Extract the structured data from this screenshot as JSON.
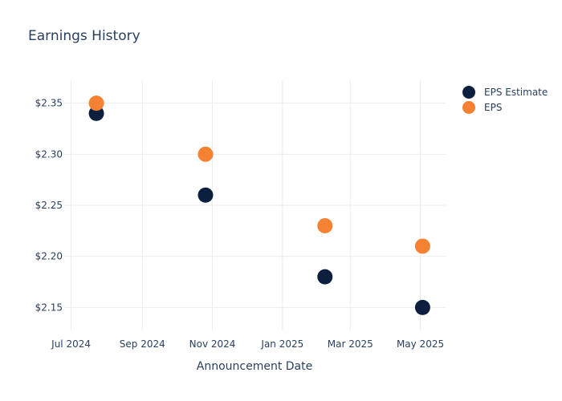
{
  "chart_data": {
    "type": "scatter",
    "title": "Earnings History",
    "xlabel": "Announcement Date",
    "ylabel": "",
    "x_ticks": [
      {
        "date": "2024-07-01",
        "label": "Jul 2024"
      },
      {
        "date": "2024-09-01",
        "label": "Sep 2024"
      },
      {
        "date": "2024-11-01",
        "label": "Nov 2024"
      },
      {
        "date": "2025-01-01",
        "label": "Jan 2025"
      },
      {
        "date": "2025-03-01",
        "label": "Mar 2025"
      },
      {
        "date": "2025-05-01",
        "label": "May 2025"
      }
    ],
    "y_ticks": [
      {
        "value": 2.15,
        "label": "$2.15"
      },
      {
        "value": 2.2,
        "label": "$2.20"
      },
      {
        "value": 2.25,
        "label": "$2.25"
      },
      {
        "value": 2.3,
        "label": "$2.30"
      },
      {
        "value": 2.35,
        "label": "$2.35"
      }
    ],
    "xlim": [
      "2024-06-25",
      "2025-05-23"
    ],
    "ylim": [
      2.1275,
      2.3725
    ],
    "grid": true,
    "legend_position": "top-right",
    "series": [
      {
        "name": "EPS Estimate",
        "color": "#0d1f3f",
        "points": [
          {
            "x": "2024-07-23",
            "y": 2.34
          },
          {
            "x": "2024-10-26",
            "y": 2.26
          },
          {
            "x": "2025-02-07",
            "y": 2.18
          },
          {
            "x": "2025-05-03",
            "y": 2.15
          }
        ]
      },
      {
        "name": "EPS",
        "color": "#f58232",
        "points": [
          {
            "x": "2024-07-23",
            "y": 2.35
          },
          {
            "x": "2024-10-26",
            "y": 2.3
          },
          {
            "x": "2025-02-07",
            "y": 2.23
          },
          {
            "x": "2025-05-03",
            "y": 2.21
          }
        ]
      }
    ]
  }
}
